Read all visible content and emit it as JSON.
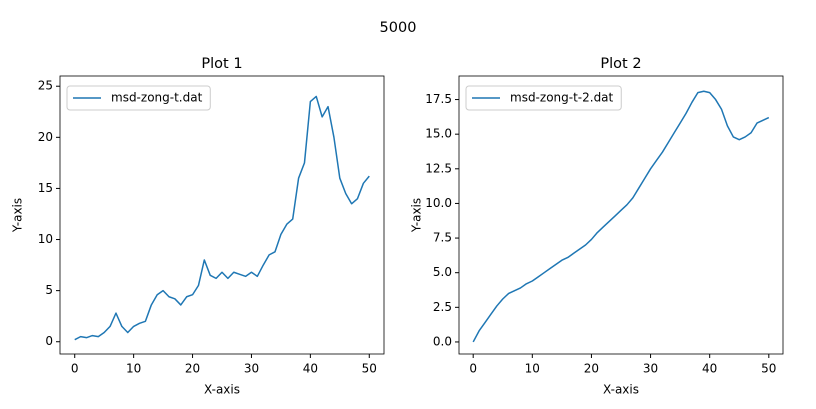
{
  "title": "5000",
  "chart_data": [
    {
      "type": "line",
      "title": "Plot 1",
      "xlabel": "X-axis",
      "ylabel": "Y-axis",
      "x": [
        0,
        1,
        2,
        3,
        4,
        5,
        6,
        7,
        8,
        9,
        10,
        11,
        12,
        13,
        14,
        15,
        16,
        17,
        18,
        19,
        20,
        21,
        22,
        23,
        24,
        25,
        26,
        27,
        28,
        29,
        30,
        31,
        32,
        33,
        34,
        35,
        36,
        37,
        38,
        39,
        40,
        41,
        42,
        43,
        44,
        45,
        46,
        47,
        48,
        49,
        50
      ],
      "series": [
        {
          "name": "msd-zong-t.dat",
          "color": "#1f77b4",
          "values": [
            0.2,
            0.5,
            0.4,
            0.6,
            0.5,
            0.9,
            1.5,
            2.8,
            1.5,
            0.9,
            1.5,
            1.8,
            2.0,
            3.6,
            4.6,
            5.0,
            4.4,
            4.2,
            3.6,
            4.4,
            4.6,
            5.5,
            8.0,
            6.5,
            6.2,
            6.8,
            6.2,
            6.8,
            6.6,
            6.4,
            6.8,
            6.4,
            7.5,
            8.5,
            8.8,
            10.5,
            11.5,
            12.0,
            16.0,
            17.5,
            23.5,
            24.0,
            22.0,
            23.0,
            20.0,
            16.0,
            14.5,
            13.5,
            14.0,
            15.5,
            16.2
          ]
        }
      ],
      "xlim": [
        -2.5,
        52.5
      ],
      "ylim": [
        -1.2,
        26
      ],
      "xticks": [
        0,
        10,
        20,
        30,
        40,
        50
      ],
      "yticks": [
        0,
        5,
        10,
        15,
        20,
        25
      ],
      "grid": false,
      "legend": "upper left"
    },
    {
      "type": "line",
      "title": "Plot 2",
      "xlabel": "X-axis",
      "ylabel": "Y-axis",
      "x": [
        0,
        1,
        2,
        3,
        4,
        5,
        6,
        7,
        8,
        9,
        10,
        11,
        12,
        13,
        14,
        15,
        16,
        17,
        18,
        19,
        20,
        21,
        22,
        23,
        24,
        25,
        26,
        27,
        28,
        29,
        30,
        31,
        32,
        33,
        34,
        35,
        36,
        37,
        38,
        39,
        40,
        41,
        42,
        43,
        44,
        45,
        46,
        47,
        48,
        49,
        50
      ],
      "series": [
        {
          "name": "msd-zong-t-2.dat",
          "color": "#1f77b4",
          "values": [
            0,
            0.8,
            1.4,
            2.0,
            2.6,
            3.1,
            3.5,
            3.7,
            3.9,
            4.2,
            4.4,
            4.7,
            5.0,
            5.3,
            5.6,
            5.9,
            6.1,
            6.4,
            6.7,
            7.0,
            7.4,
            7.9,
            8.3,
            8.7,
            9.1,
            9.5,
            9.9,
            10.4,
            11.1,
            11.8,
            12.5,
            13.1,
            13.7,
            14.4,
            15.1,
            15.8,
            16.5,
            17.3,
            18.0,
            18.1,
            18.0,
            17.5,
            16.8,
            15.6,
            14.8,
            14.6,
            14.8,
            15.1,
            15.8,
            16.0,
            16.2
          ]
        }
      ],
      "xlim": [
        -2.4,
        52.4
      ],
      "ylim": [
        -0.87,
        19.2
      ],
      "xticks": [
        0,
        10,
        20,
        30,
        40,
        50
      ],
      "yticks": [
        {
          "value": 0,
          "label": "0.0"
        },
        2.5,
        {
          "value": 5,
          "label": "5.0"
        },
        7.5,
        {
          "value": 10,
          "label": "10.0"
        },
        12.5,
        {
          "value": 15,
          "label": "15.0"
        },
        17.5
      ],
      "grid": false,
      "legend": "upper left"
    }
  ]
}
